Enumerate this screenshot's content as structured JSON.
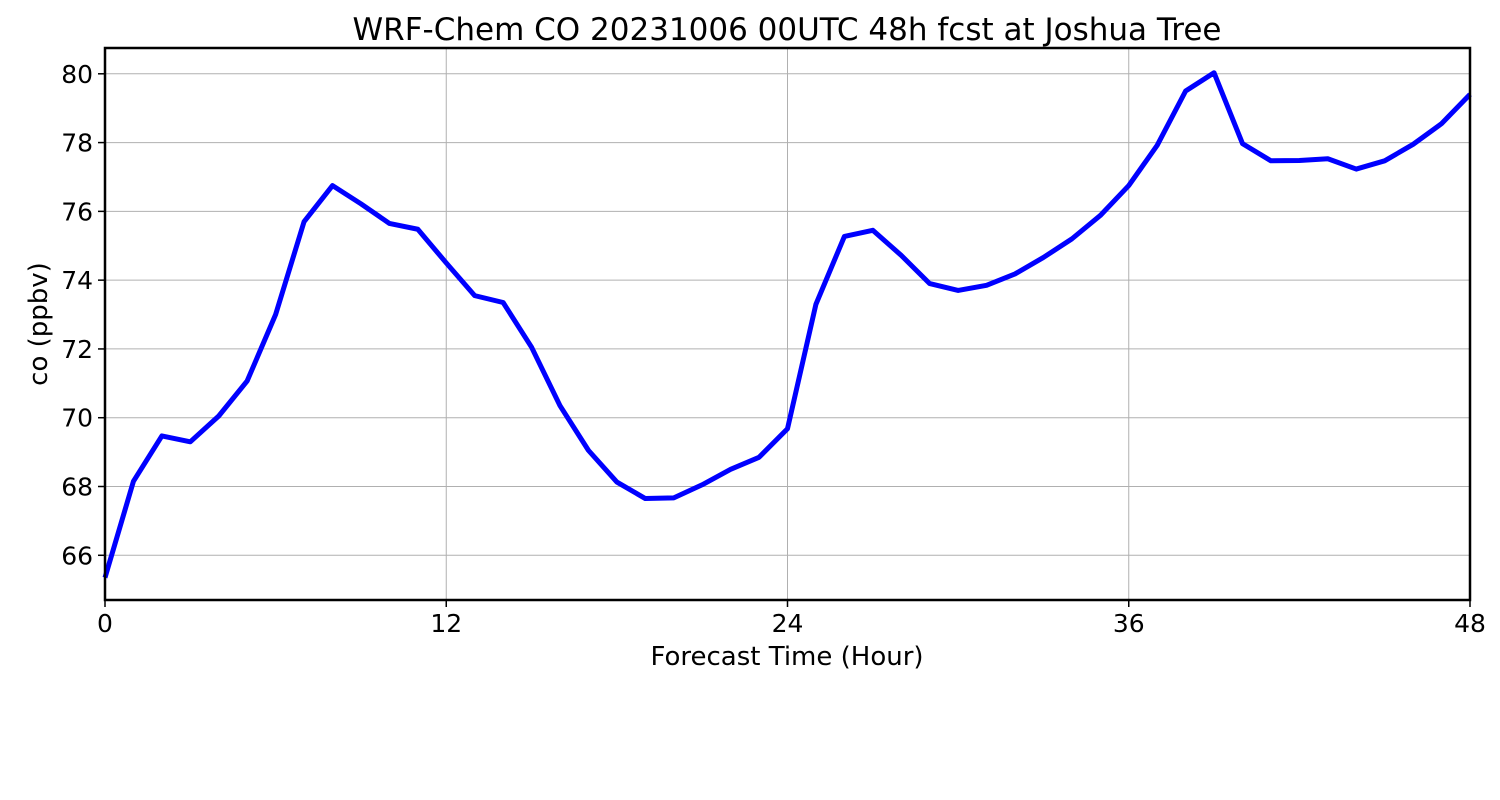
{
  "chart_data": {
    "type": "line",
    "title": "WRF-Chem CO  20231006 00UTC 48h fcst at Joshua Tree",
    "xlabel": "Forecast Time (Hour)",
    "ylabel": "co  (ppbv)",
    "xlim": [
      0,
      48
    ],
    "ylim": [
      64.7,
      80.75
    ],
    "xticks": [
      0,
      12,
      24,
      36,
      48
    ],
    "yticks": [
      66,
      68,
      70,
      72,
      74,
      76,
      78,
      80
    ],
    "grid": true,
    "legend": "none",
    "series": [
      {
        "color": "#0000ff",
        "x": [
          0,
          1,
          2,
          3,
          4,
          5,
          6,
          7,
          8,
          9,
          10,
          11,
          12,
          13,
          14,
          15,
          16,
          17,
          18,
          19,
          20,
          21,
          22,
          23,
          24,
          25,
          26,
          27,
          28,
          29,
          30,
          31,
          32,
          33,
          34,
          35,
          36,
          37,
          38,
          39,
          40,
          41,
          42,
          43,
          44,
          45,
          46,
          47,
          48
        ],
        "y": [
          65.35,
          68.15,
          69.47,
          69.3,
          70.05,
          71.07,
          73.0,
          75.7,
          76.75,
          76.22,
          75.65,
          75.48,
          74.5,
          73.55,
          73.35,
          72.05,
          70.35,
          69.05,
          68.13,
          67.65,
          67.67,
          68.05,
          68.5,
          68.85,
          69.68,
          73.3,
          75.27,
          75.45,
          74.72,
          73.9,
          73.7,
          73.85,
          74.18,
          74.66,
          75.2,
          75.88,
          76.75,
          77.92,
          79.5,
          80.03,
          77.97,
          77.47,
          77.48,
          77.53,
          77.23,
          77.47,
          77.95,
          78.55,
          79.4
        ]
      }
    ]
  }
}
